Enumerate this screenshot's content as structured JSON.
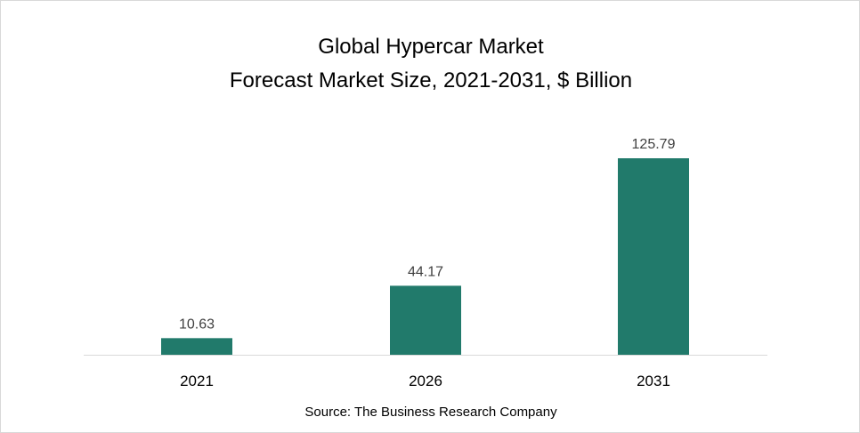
{
  "chart_data": {
    "type": "bar",
    "title_lines": [
      "Global Hypercar Market",
      "Forecast Market Size, 2021-2031, $ Billion"
    ],
    "categories": [
      "2021",
      "2026",
      "2031"
    ],
    "values": [
      10.63,
      44.17,
      125.79
    ],
    "value_labels": [
      "10.63",
      "44.17",
      "125.79"
    ],
    "xlabel": "",
    "ylabel": "",
    "ylim": [
      0,
      125.79
    ],
    "grid": false,
    "legend": "none",
    "bar_color": "#217a6b"
  },
  "source": "Source: The Business Research Company"
}
